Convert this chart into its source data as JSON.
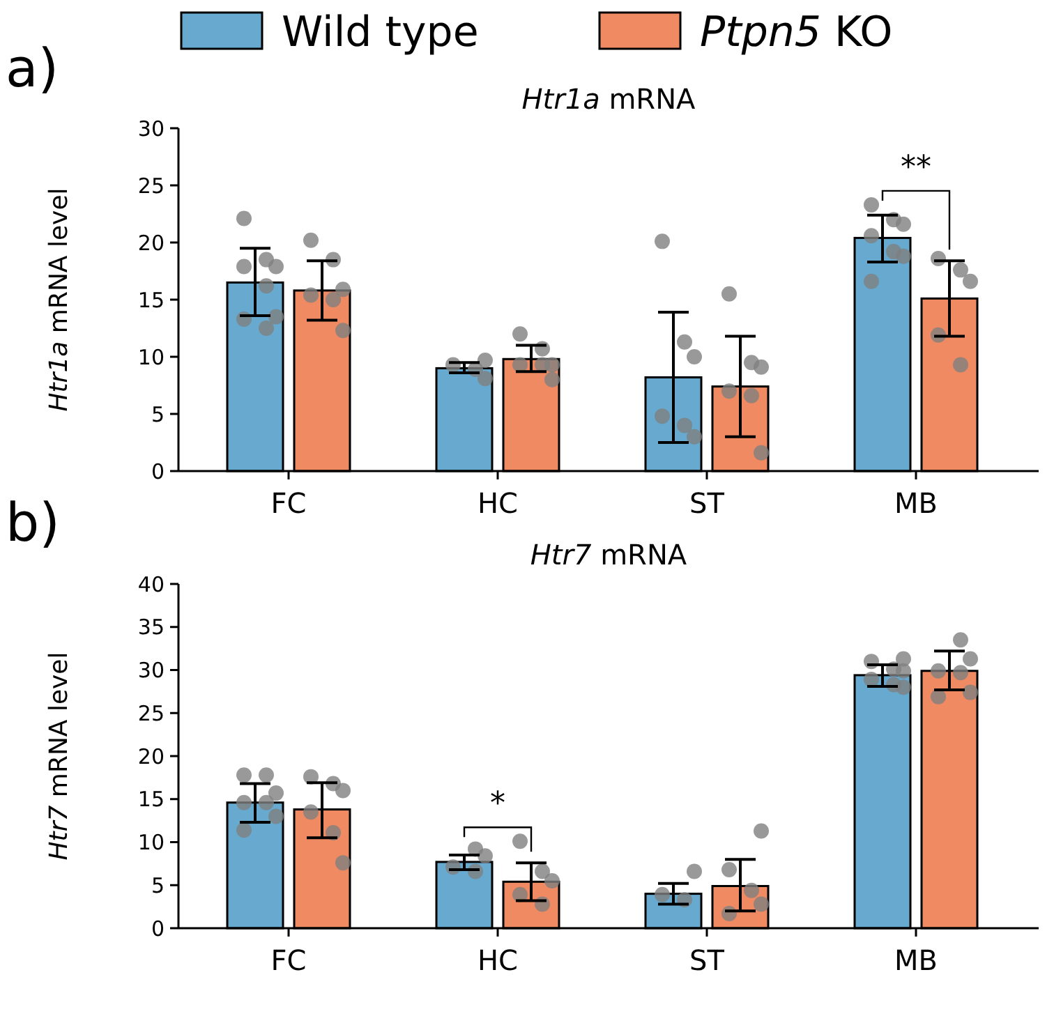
{
  "chart_data": [
    {
      "type": "bar",
      "title": "Htr1a mRNA",
      "ylabel": "Htr1a mRNA level",
      "annotations": [
        "a)",
        "**"
      ],
      "categories": [
        "FC",
        "HC",
        "ST",
        "MB"
      ],
      "ylim": [
        0,
        30
      ],
      "yticks": [
        0,
        5,
        10,
        15,
        20,
        25,
        30
      ],
      "legend": "top",
      "series": [
        {
          "name": "Wild type",
          "color": "#67a9cf",
          "values": [
            16.5,
            9.0,
            8.2,
            20.4
          ],
          "errors": [
            [
              13.6,
              19.5
            ],
            [
              8.6,
              9.5
            ],
            [
              2.5,
              13.9
            ],
            [
              18.3,
              22.4
            ]
          ]
        },
        {
          "name": "Ptpn5 KO",
          "color": "#ef8a62",
          "values": [
            15.8,
            9.8,
            7.4,
            15.1
          ],
          "errors": [
            [
              13.2,
              18.4
            ],
            [
              8.7,
              11.0
            ],
            [
              3.0,
              11.8
            ],
            [
              11.8,
              18.4
            ]
          ]
        },
        {
          "type": "scatter",
          "color": "#808080",
          "x": [
            "FC",
            "FC",
            "FC",
            "FC",
            "FC",
            "FC",
            "FC",
            "FC",
            "HC",
            "HC",
            "HC",
            "HC",
            "ST",
            "ST",
            "ST",
            "ST",
            "ST",
            "ST",
            "MB",
            "MB",
            "MB",
            "MB",
            "MB",
            "MB",
            "MB"
          ],
          "values": [
            22.1,
            18.5,
            17.9,
            17.9,
            16.2,
            13.5,
            13.3,
            12.5,
            9.7,
            9.3,
            8.9,
            8.1,
            20.1,
            11.3,
            10.0,
            4.8,
            4.0,
            3.0,
            23.3,
            22.0,
            21.6,
            20.6,
            19.2,
            18.8,
            16.6
          ]
        },
        {
          "type": "scatter",
          "color": "#808080",
          "x": [
            "FC",
            "FC",
            "FC",
            "FC",
            "FC",
            "FC",
            "HC",
            "HC",
            "HC",
            "HC",
            "HC",
            "HC",
            "ST",
            "ST",
            "ST",
            "ST",
            "ST",
            "ST",
            "MB",
            "MB",
            "MB",
            "MB",
            "MB"
          ],
          "values": [
            20.2,
            18.5,
            15.9,
            15.4,
            15.0,
            12.3,
            12.0,
            10.7,
            9.3,
            9.3,
            9.3,
            8.0,
            15.5,
            9.5,
            9.1,
            7.0,
            6.6,
            1.6,
            18.6,
            17.6,
            16.6,
            11.9,
            9.3
          ]
        }
      ]
    },
    {
      "type": "bar",
      "title": "Htr7 mRNA",
      "ylabel": "Htr7 mRNA level",
      "annotations": [
        "b)",
        "*"
      ],
      "categories": [
        "FC",
        "HC",
        "ST",
        "MB"
      ],
      "ylim": [
        0,
        40
      ],
      "yticks": [
        0,
        5,
        10,
        15,
        20,
        25,
        30,
        35,
        40
      ],
      "series": [
        {
          "color": "#67a9cf",
          "values": [
            14.6,
            7.7,
            4.0,
            29.4
          ],
          "errors": [
            [
              12.3,
              16.8
            ],
            [
              6.8,
              8.5
            ],
            [
              2.8,
              5.2
            ],
            [
              28.1,
              30.6
            ]
          ]
        },
        {
          "color": "#ef8a62",
          "values": [
            13.8,
            5.4,
            4.9,
            29.9
          ],
          "errors": [
            [
              10.5,
              16.9
            ],
            [
              3.2,
              7.6
            ],
            [
              2.0,
              8.0
            ],
            [
              27.7,
              32.2
            ]
          ]
        },
        {
          "type": "scatter",
          "color": "#808080",
          "x": [
            "FC",
            "FC",
            "FC",
            "FC",
            "FC",
            "FC",
            "FC",
            "HC",
            "HC",
            "HC",
            "HC",
            "ST",
            "ST",
            "ST",
            "MB",
            "MB",
            "MB",
            "MB",
            "MB",
            "MB",
            "MB"
          ],
          "values": [
            17.8,
            17.8,
            15.7,
            14.6,
            14.6,
            13.0,
            11.4,
            9.2,
            8.4,
            7.1,
            6.6,
            6.6,
            3.9,
            3.3,
            31.3,
            31.0,
            30.1,
            29.9,
            28.9,
            28.3,
            28.0
          ]
        },
        {
          "type": "scatter",
          "color": "#808080",
          "x": [
            "FC",
            "FC",
            "FC",
            "FC",
            "FC",
            "FC",
            "HC",
            "HC",
            "HC",
            "HC",
            "HC",
            "ST",
            "ST",
            "ST",
            "ST",
            "ST",
            "MB",
            "MB",
            "MB",
            "MB",
            "MB",
            "MB"
          ],
          "values": [
            17.6,
            16.8,
            16.0,
            13.5,
            11.1,
            7.6,
            10.1,
            6.6,
            5.5,
            3.9,
            2.8,
            11.3,
            6.8,
            4.4,
            2.8,
            1.7,
            33.5,
            31.3,
            29.9,
            29.7,
            27.4,
            26.9
          ]
        }
      ]
    }
  ]
}
